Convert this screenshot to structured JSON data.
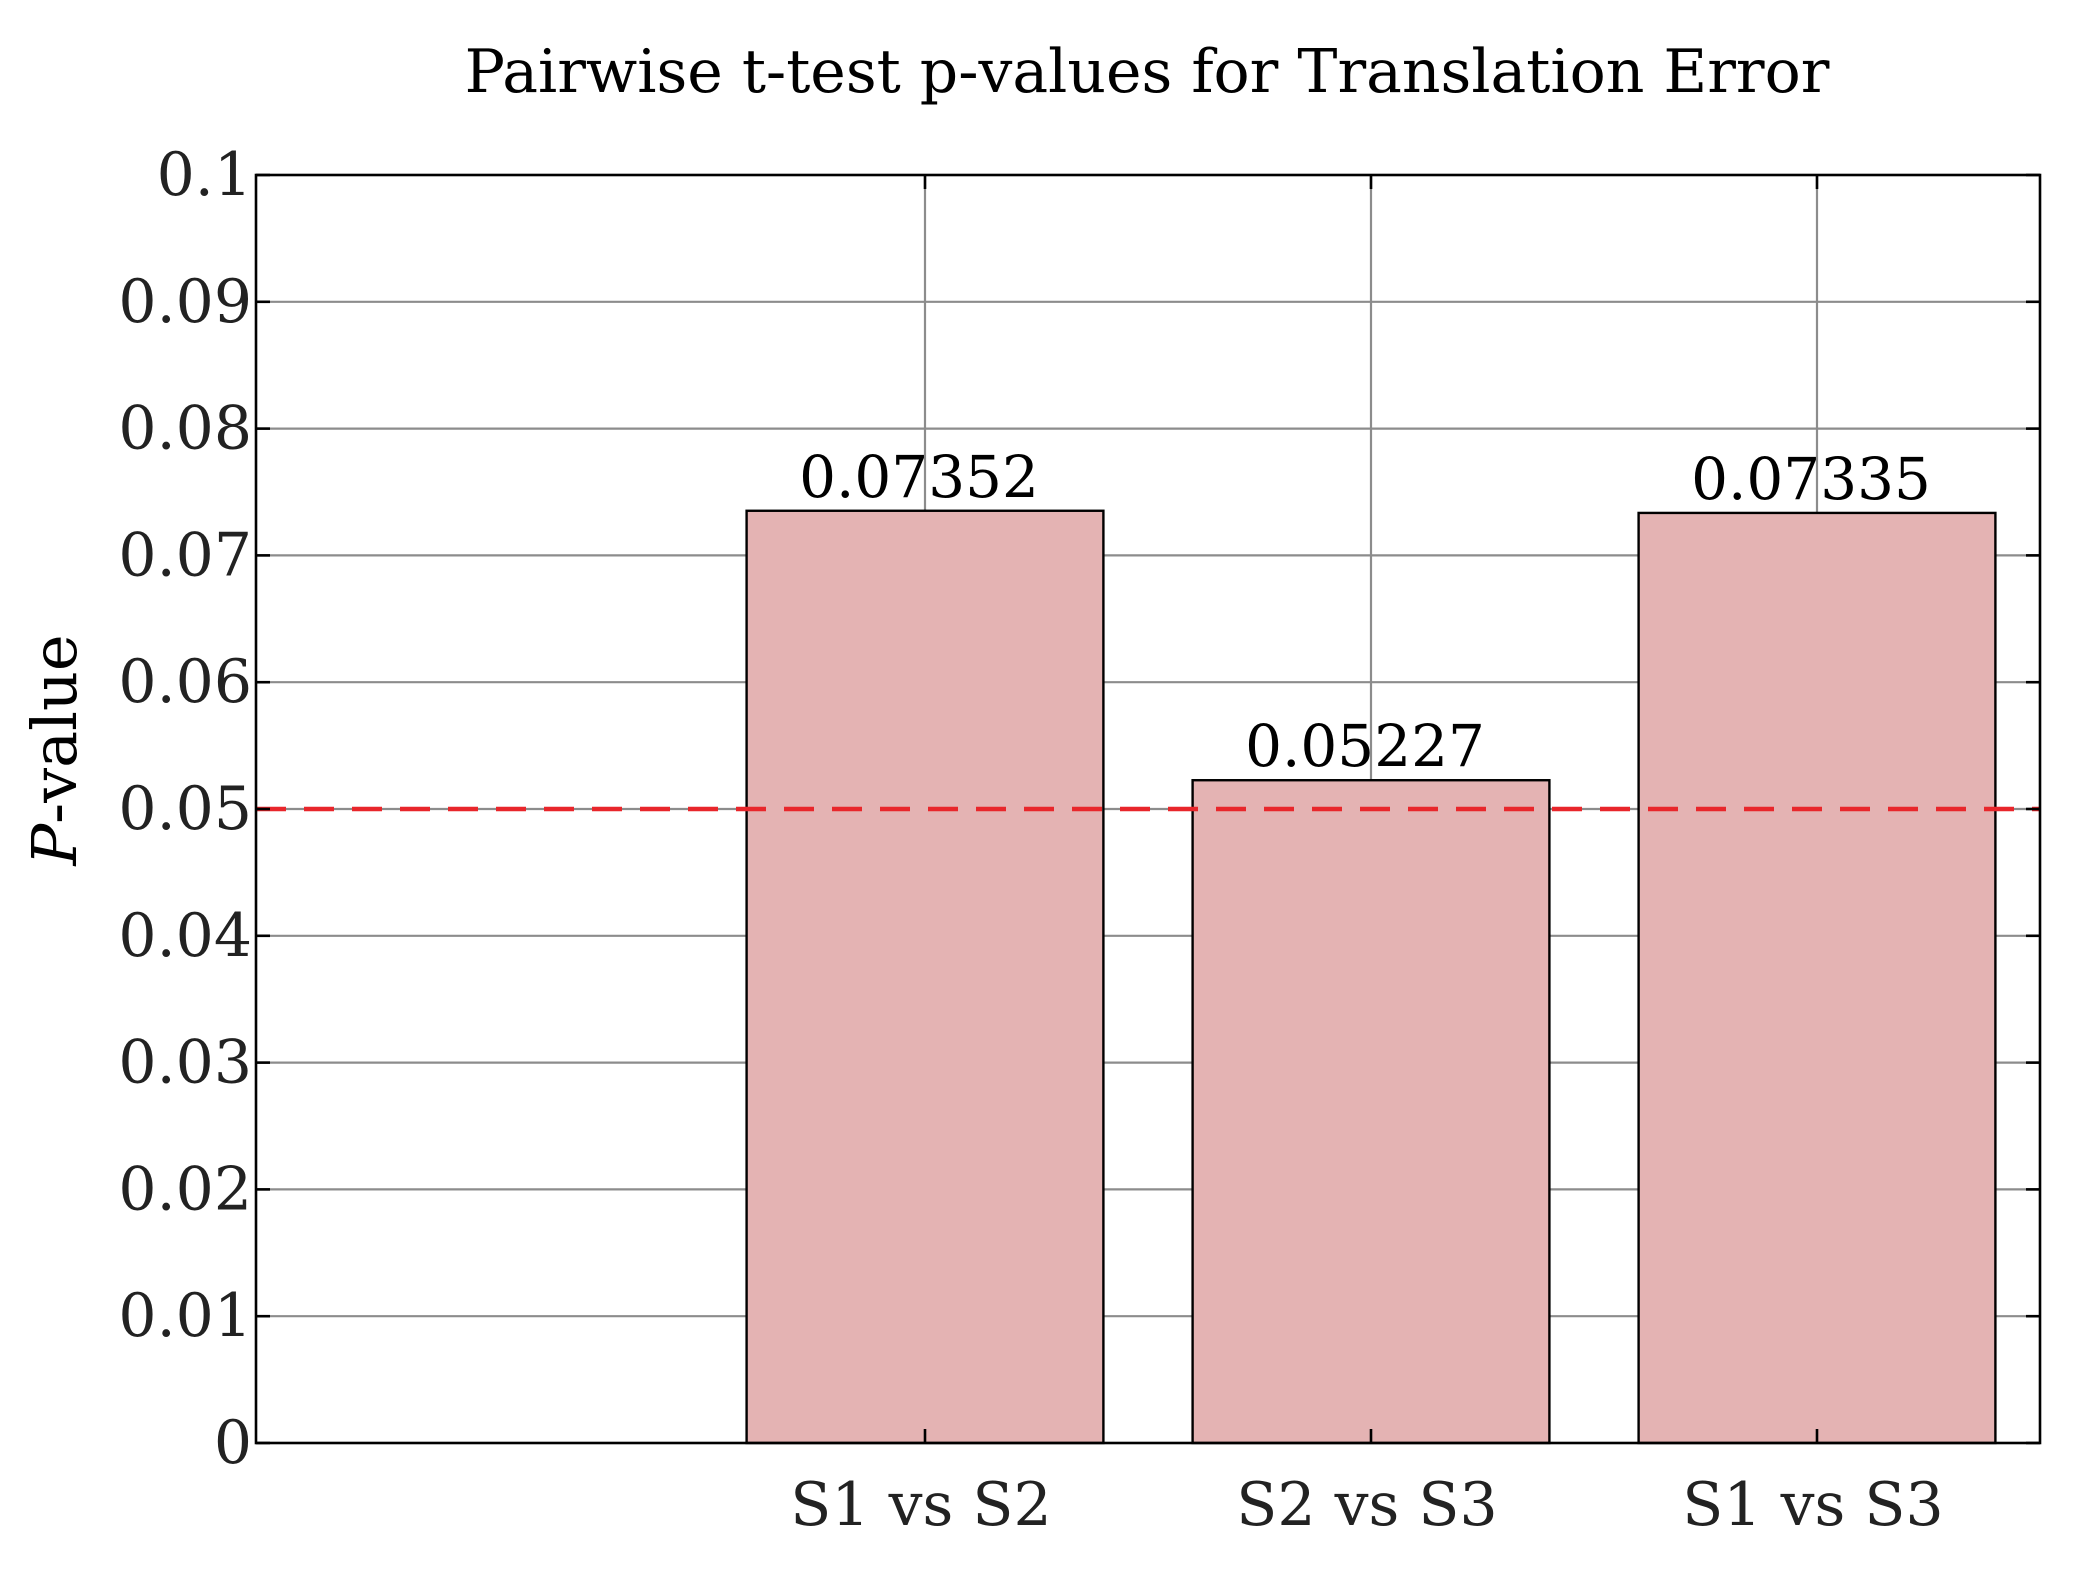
{
  "chart_data": {
    "type": "bar",
    "title": "Pairwise t-test p-values for Translation Error",
    "ylabel_symbol": "P",
    "ylabel_suffix": "-value",
    "xlabel": "",
    "categories": [
      "S1 vs S2",
      "S2 vs S3",
      "S1 vs S3"
    ],
    "values": [
      0.07352,
      0.05227,
      0.07335
    ],
    "value_labels": [
      "0.07352",
      "0.05227",
      "0.07335"
    ],
    "ylim": [
      0,
      0.1
    ],
    "yticks": [
      0,
      0.01,
      0.02,
      0.03,
      0.04,
      0.05,
      0.06,
      0.07,
      0.08,
      0.09,
      0.1
    ],
    "ytick_labels": [
      "0",
      "0.01",
      "0.02",
      "0.03",
      "0.04",
      "0.05",
      "0.06",
      "0.07",
      "0.08",
      "0.09",
      "0.1"
    ],
    "xlim": [
      -0.5,
      3.5
    ],
    "category_positions": [
      1,
      2,
      3
    ],
    "bar_width": 0.8,
    "threshold": {
      "value": 0.05,
      "style": "dashed",
      "color": "#e8262b"
    },
    "grid": true,
    "legend": "none",
    "colors": {
      "bar_fill": "#e4b3b3",
      "bar_edge": "#000000",
      "grid": "#8c8c8c",
      "axis": "#000000"
    }
  }
}
